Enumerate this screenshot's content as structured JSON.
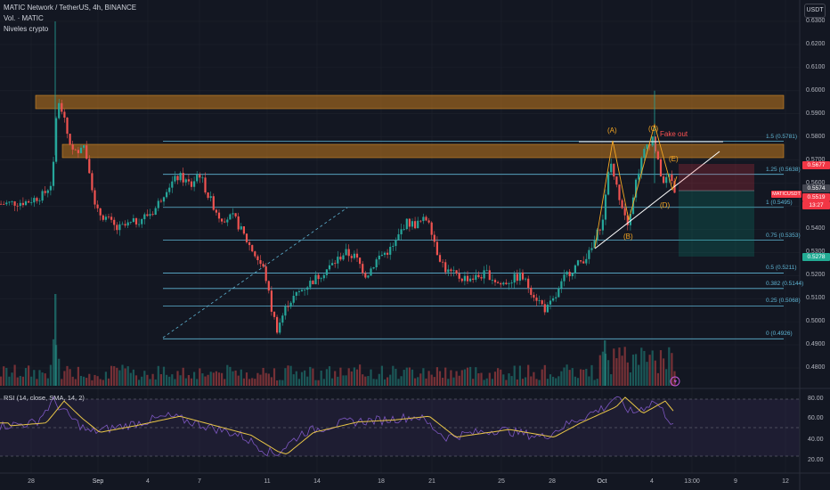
{
  "legend": {
    "symbol": "MATIC Network / TetherUS, 4h, BINANCE",
    "volume": "Vol. · MATIC",
    "indicator": "Niveles crypto"
  },
  "currency_button": "USDT",
  "rsi": {
    "label": "RSI (14, close, SMA, 14, 2)",
    "ticks": [
      "80.00",
      "60.00",
      "40.00",
      "20.00"
    ]
  },
  "price_axis": [
    "0.6300",
    "0.6200",
    "0.6100",
    "0.6000",
    "0.5900",
    "0.5800",
    "0.5700",
    "0.5600",
    "0.5500",
    "0.5400",
    "0.5300",
    "0.5200",
    "0.5100",
    "0.5000",
    "0.4900",
    "0.4800"
  ],
  "price_tags": {
    "stop": {
      "value": "0.5677",
      "color": "#f23645"
    },
    "current": {
      "value": "0.5574",
      "color": "#434651"
    },
    "symbol_label": {
      "value": "MATICUSDT",
      "color": "#f23645"
    },
    "last": {
      "value": "0.5519",
      "color": "#f23645"
    },
    "countdown": {
      "value": "13:27",
      "color": "#f23645"
    },
    "target": {
      "value": "0.5278",
      "color": "#22ab94"
    }
  },
  "fib_levels": [
    {
      "label": "1.5 (0.5781)",
      "price": 0.5781
    },
    {
      "label": "1.25 (0.5638)",
      "price": 0.5638
    },
    {
      "label": "1 (0.5495)",
      "price": 0.5495
    },
    {
      "label": "0.75 (0.5353)",
      "price": 0.5353
    },
    {
      "label": "0.5 (0.5211)",
      "price": 0.5211
    },
    {
      "label": "0.382 (0.5144)",
      "price": 0.5144
    },
    {
      "label": "0.25 (0.5068)",
      "price": 0.5068
    },
    {
      "label": "0 (0.4926)",
      "price": 0.4926
    }
  ],
  "wave_labels": [
    "(A)",
    "(B)",
    "(C)",
    "(D)",
    "(E)"
  ],
  "annotation": "Fake out",
  "x_axis": [
    "28",
    "Sep",
    "4",
    "7",
    "11",
    "14",
    "18",
    "21",
    "25",
    "28",
    "Oct",
    "4",
    "13:00",
    "9",
    "12"
  ],
  "colors": {
    "up": "#26a69a",
    "down": "#ef5350",
    "fib": "#5fb5d4",
    "zone": "#c47a1e",
    "wave": "#f5a623",
    "rsi_line": "#7e57c2",
    "rsi_sma": "#e8c547"
  }
}
